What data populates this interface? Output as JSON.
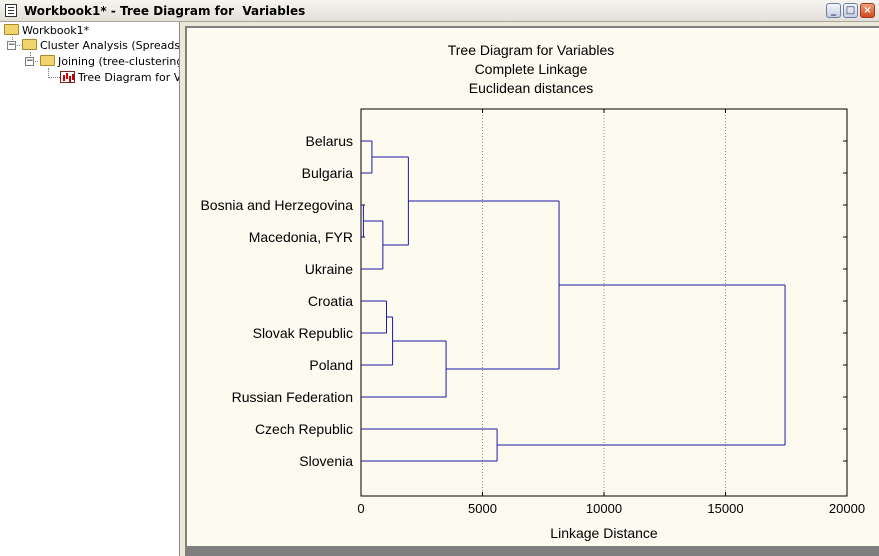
{
  "window": {
    "title": "Workbook1* - Tree Diagram for  Variables",
    "buttons": [
      "minimize",
      "maximize",
      "close"
    ]
  },
  "tree": {
    "root": "Workbook1*",
    "analysis": "Cluster Analysis (Spreadsheet)",
    "joining": "Joining (tree-clustering)",
    "graph": "Tree Diagram for  Variables"
  },
  "chart_data": {
    "type": "dendrogram",
    "title": "Tree Diagram for  Variables",
    "subtitle1": "Complete Linkage",
    "subtitle2": "Euclidean distances",
    "xlabel": "Linkage Distance",
    "xlim": [
      0,
      20000
    ],
    "xticks": [
      "0",
      "5000",
      "10000",
      "15000",
      "20000"
    ],
    "grid": "vertical dotted",
    "leaves": [
      "Belarus",
      "Bulgaria",
      "Bosnia and Herzegovina",
      "Macedonia, FYR",
      "Ukraine",
      "Croatia",
      "Slovak Republic",
      "Poland",
      "Russian Federation",
      "Czech Republic",
      "Slovenia"
    ],
    "merges": [
      {
        "a": "Belarus",
        "b": "Bulgaria",
        "height": 450
      },
      {
        "a": "Bosnia and Herzegovina",
        "b": "Macedonia, FYR",
        "height": 100
      },
      {
        "a": "Bosnia and Herzegovina + Macedonia, FYR",
        "b": "Ukraine",
        "height": 900
      },
      {
        "a": "Belarus + Bulgaria",
        "b": "Bosnia and Herzegovina + Macedonia, FYR + Ukraine",
        "height": 1950
      },
      {
        "a": "Croatia",
        "b": "Slovak Republic",
        "height": 1050
      },
      {
        "a": "Croatia + Slovak Republic",
        "b": "Poland",
        "height": 1300
      },
      {
        "a": "Croatia + Slovak Republic + Poland",
        "b": "Russian Federation",
        "height": 3500
      },
      {
        "a": "Belarus ... Ukraine",
        "b": "Croatia ... Russian Federation",
        "height": 8150
      },
      {
        "a": "Czech Republic",
        "b": "Slovenia",
        "height": 5600
      },
      {
        "a": "Belarus ... Russian Federation",
        "b": "Czech Republic + Slovenia",
        "height": 17450
      }
    ],
    "line_color": "#1a1aa6"
  }
}
